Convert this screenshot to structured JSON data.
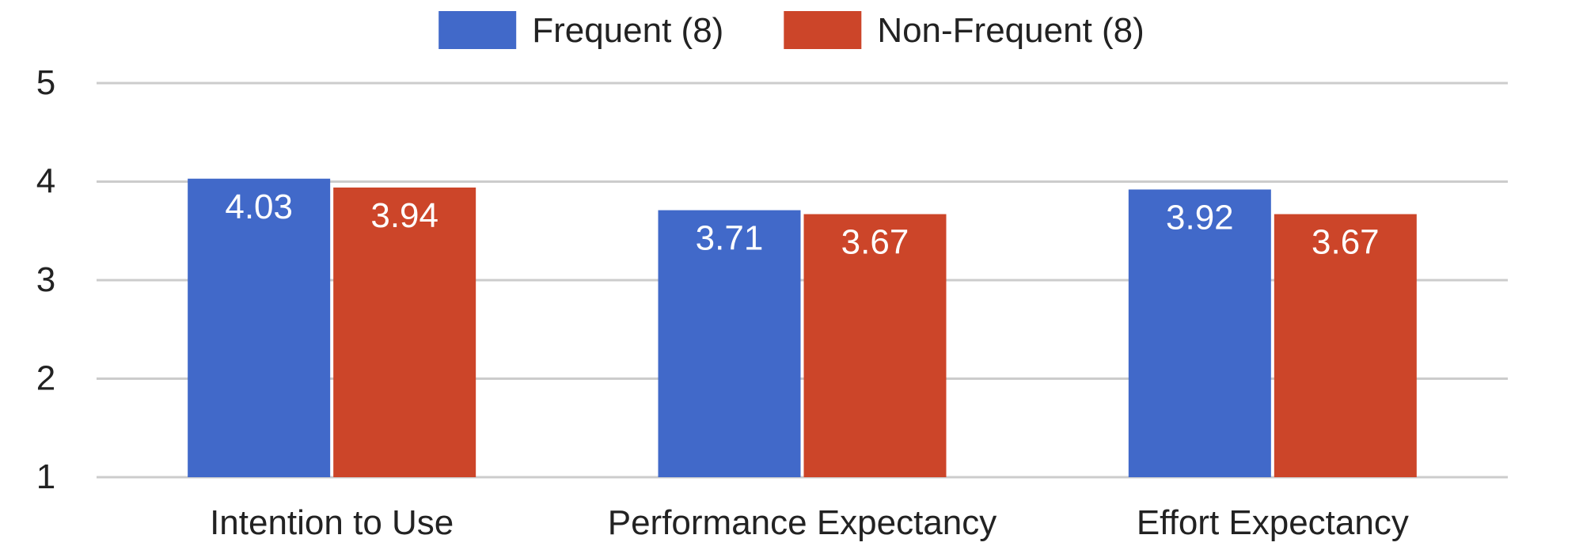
{
  "chart_data": {
    "type": "bar",
    "categories": [
      "Intention to Use",
      "Performance Expectancy",
      "Effort Expectancy"
    ],
    "series": [
      {
        "name": "Frequent (8)",
        "color": "#4169c9",
        "values": [
          4.03,
          3.71,
          3.92
        ],
        "labels": [
          "4.03",
          "3.71",
          "3.92"
        ]
      },
      {
        "name": "Non-Frequent (8)",
        "color": "#cc4529",
        "values": [
          3.94,
          3.67,
          3.67
        ],
        "labels": [
          "3.94",
          "3.67",
          "3.67"
        ]
      }
    ],
    "yticks": [
      "1",
      "2",
      "3",
      "4",
      "5"
    ],
    "ylim": [
      1,
      5
    ],
    "grid": true,
    "legend_position": "top-center",
    "title": "",
    "xlabel": "",
    "ylabel": ""
  }
}
